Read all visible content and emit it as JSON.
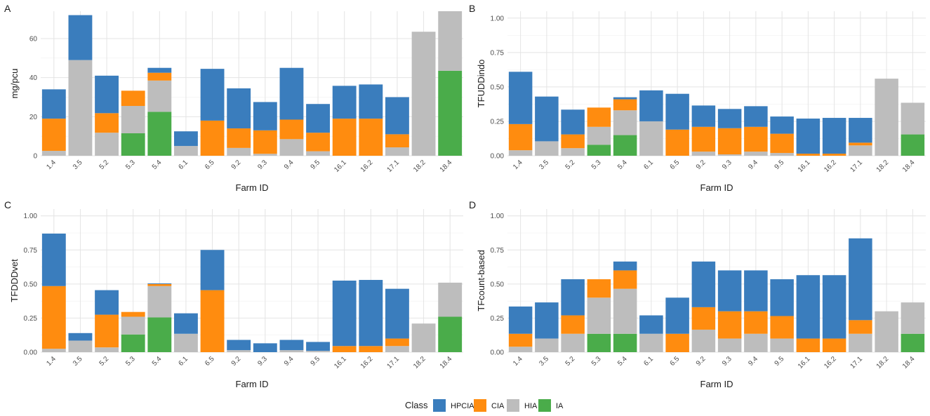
{
  "colors": {
    "HPCIA": "#3a7dbd",
    "CIA": "#ff8c0f",
    "HIA": "#bdbdbd",
    "IA": "#4aac4a"
  },
  "legend": {
    "title": "Class",
    "items": [
      "HPCIA",
      "CIA",
      "HIA",
      "IA"
    ]
  },
  "chart_data": [
    {
      "panel": "A",
      "type": "bar",
      "stacked": true,
      "xlabel": "Farm ID",
      "ylabel": "mg/pcu",
      "ylim": [
        0,
        74
      ],
      "yticks": [
        0,
        20,
        40,
        60
      ],
      "ytick_labels": [
        "0",
        "20",
        "40",
        "60"
      ],
      "categories": [
        "1.4",
        "3.5",
        "5.2",
        "5.3",
        "5.4",
        "6.1",
        "6.5",
        "9.2",
        "9.3",
        "9.4",
        "9.5",
        "16.1",
        "16.2",
        "17.1",
        "18.2",
        "18.4"
      ],
      "series": [
        {
          "name": "IA",
          "values": [
            0,
            0,
            0,
            11.5,
            22.5,
            0,
            0,
            0,
            0,
            0,
            0,
            0,
            0,
            0,
            0,
            43.5
          ]
        },
        {
          "name": "HIA",
          "values": [
            2.5,
            49,
            11.8,
            14,
            16,
            5,
            0,
            4,
            1,
            8.5,
            2.3,
            0,
            0,
            4.3,
            63.5,
            30.5
          ]
        },
        {
          "name": "CIA",
          "values": [
            16.5,
            0,
            10,
            7.8,
            4,
            0,
            18,
            10,
            12,
            10,
            9.5,
            19,
            19,
            6.7,
            0,
            0
          ]
        },
        {
          "name": "HPCIA",
          "values": [
            15,
            23,
            19.2,
            0,
            2.5,
            7.5,
            26.5,
            20.5,
            14.5,
            26.5,
            14.7,
            16.8,
            17.5,
            19,
            0,
            0
          ]
        }
      ]
    },
    {
      "panel": "B",
      "type": "bar",
      "stacked": true,
      "xlabel": "Farm ID",
      "ylabel": "TFUDDindo",
      "ylim": [
        0,
        1.05
      ],
      "yticks": [
        0,
        0.25,
        0.5,
        0.75,
        1
      ],
      "ytick_labels": [
        "0.00",
        "0.25",
        "0.50",
        "0.75",
        "1.00"
      ],
      "categories": [
        "1.4",
        "3.5",
        "5.2",
        "5.3",
        "5.4",
        "6.1",
        "6.5",
        "9.2",
        "9.3",
        "9.4",
        "9.5",
        "16.1",
        "16.2",
        "17.1",
        "18.2",
        "18.4"
      ],
      "series": [
        {
          "name": "IA",
          "values": [
            0,
            0,
            0,
            0.08,
            0.15,
            0,
            0,
            0,
            0,
            0,
            0,
            0,
            0,
            0,
            0,
            0.155
          ]
        },
        {
          "name": "HIA",
          "values": [
            0.04,
            0.105,
            0.055,
            0.13,
            0.18,
            0.25,
            0,
            0.03,
            0.01,
            0.03,
            0.02,
            0,
            0,
            0.075,
            0.56,
            0.23
          ]
        },
        {
          "name": "CIA",
          "values": [
            0.19,
            0,
            0.1,
            0.14,
            0.08,
            0,
            0.19,
            0.18,
            0.19,
            0.18,
            0.14,
            0.015,
            0.015,
            0.02,
            0,
            0
          ]
        },
        {
          "name": "HPCIA",
          "values": [
            0.38,
            0.325,
            0.18,
            0,
            0.015,
            0.225,
            0.26,
            0.155,
            0.14,
            0.15,
            0.125,
            0.255,
            0.26,
            0.18,
            0,
            0
          ]
        }
      ]
    },
    {
      "panel": "C",
      "type": "bar",
      "stacked": true,
      "xlabel": "Farm ID",
      "ylabel": "TFDDDvet",
      "ylim": [
        0,
        1.05
      ],
      "yticks": [
        0,
        0.25,
        0.5,
        0.75,
        1
      ],
      "ytick_labels": [
        "0.00",
        "0.25",
        "0.50",
        "0.75",
        "1.00"
      ],
      "categories": [
        "1.4",
        "3.5",
        "5.2",
        "5.3",
        "5.4",
        "6.1",
        "6.5",
        "9.2",
        "9.3",
        "9.4",
        "9.5",
        "16.1",
        "16.2",
        "17.1",
        "18.2",
        "18.4"
      ],
      "series": [
        {
          "name": "IA",
          "values": [
            0,
            0,
            0,
            0.13,
            0.255,
            0,
            0,
            0,
            0,
            0,
            0,
            0,
            0,
            0,
            0,
            0.26
          ]
        },
        {
          "name": "HIA",
          "values": [
            0.025,
            0.085,
            0.035,
            0.13,
            0.23,
            0.135,
            0,
            0.015,
            0,
            0.015,
            0.01,
            0,
            0,
            0.045,
            0.21,
            0.25
          ]
        },
        {
          "name": "CIA",
          "values": [
            0.46,
            0,
            0.24,
            0.035,
            0.015,
            0,
            0.455,
            0,
            0,
            0,
            0,
            0.045,
            0.045,
            0.055,
            0,
            0
          ]
        },
        {
          "name": "HPCIA",
          "values": [
            0.385,
            0.055,
            0.18,
            0,
            0.005,
            0.15,
            0.295,
            0.075,
            0.065,
            0.075,
            0.065,
            0.48,
            0.485,
            0.365,
            0,
            0
          ]
        }
      ]
    },
    {
      "panel": "D",
      "type": "bar",
      "stacked": true,
      "xlabel": "Farm ID",
      "ylabel": "TFcount-based",
      "ylim": [
        0,
        1.05
      ],
      "yticks": [
        0,
        0.25,
        0.5,
        0.75,
        1
      ],
      "ytick_labels": [
        "0.00",
        "0.25",
        "0.50",
        "0.75",
        "1.00"
      ],
      "categories": [
        "1.4",
        "3.5",
        "5.2",
        "5.3",
        "5.4",
        "6.1",
        "6.5",
        "9.2",
        "9.3",
        "9.4",
        "9.5",
        "16.1",
        "16.2",
        "17.1",
        "18.2",
        "18.4"
      ],
      "series": [
        {
          "name": "IA",
          "values": [
            0,
            0,
            0,
            0.135,
            0.135,
            0,
            0,
            0,
            0,
            0,
            0,
            0,
            0,
            0,
            0,
            0.135
          ]
        },
        {
          "name": "HIA",
          "values": [
            0.04,
            0.1,
            0.135,
            0.265,
            0.33,
            0.135,
            0,
            0.165,
            0.1,
            0.135,
            0.1,
            0,
            0,
            0.135,
            0.3,
            0.23
          ]
        },
        {
          "name": "CIA",
          "values": [
            0.095,
            0,
            0.135,
            0.135,
            0.135,
            0,
            0.135,
            0.165,
            0.2,
            0.165,
            0.165,
            0.1,
            0.1,
            0.1,
            0,
            0
          ]
        },
        {
          "name": "HPCIA",
          "values": [
            0.2,
            0.265,
            0.265,
            0,
            0.065,
            0.135,
            0.265,
            0.335,
            0.3,
            0.3,
            0.27,
            0.465,
            0.465,
            0.6,
            0,
            0
          ]
        }
      ]
    }
  ]
}
